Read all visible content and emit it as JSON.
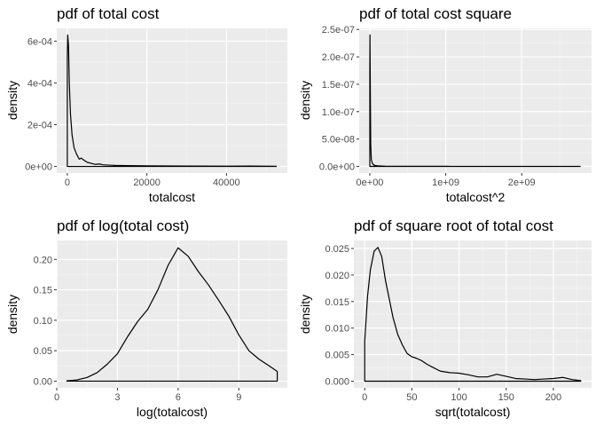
{
  "chart_data": [
    {
      "type": "area",
      "title": "pdf of total cost",
      "xlabel": "totalcost",
      "ylabel": "density",
      "xlim": [
        -2650,
        55300
      ],
      "ylim": [
        -3.15e-05,
        0.000661
      ],
      "grid": true,
      "x_ticks": [
        {
          "value": 0,
          "label": "0"
        },
        {
          "value": 20000,
          "label": "20000"
        },
        {
          "value": 40000,
          "label": "40000"
        }
      ],
      "y_ticks": [
        {
          "value": 0,
          "label": "0e+00"
        },
        {
          "value": 0.0002,
          "label": "2e-04"
        },
        {
          "value": 0.0004,
          "label": "4e-04"
        },
        {
          "value": 0.0006,
          "label": "6e-04"
        }
      ],
      "series": [
        {
          "x": [
            0,
            100,
            300,
            500,
            800,
            1200,
            1700,
            2300,
            3000,
            3500,
            4200,
            5000,
            6000,
            7000,
            8000,
            9000,
            10000,
            12000,
            15000,
            20000,
            30000,
            40000,
            46000,
            52500
          ],
          "y": [
            0.00052,
            0.00063,
            0.00058,
            0.0004,
            0.00025,
            0.00015,
            9e-05,
            6e-05,
            3.5e-05,
            4e-05,
            3e-05,
            2e-05,
            1.5e-05,
            1e-05,
            1.2e-05,
            8e-06,
            7e-06,
            5e-06,
            4e-06,
            3e-06,
            2e-06,
            1.5e-06,
            2e-06,
            1e-06
          ]
        }
      ]
    },
    {
      "type": "area",
      "title": "pdf of total cost square",
      "xlabel": "totalcost^2",
      "ylabel": "density",
      "xlim": [
        -140000000,
        2920000000
      ],
      "ylim": [
        -1.22e-08,
        2.52e-07
      ],
      "grid": true,
      "x_ticks": [
        {
          "value": 0,
          "label": "0e+00"
        },
        {
          "value": 1000000000,
          "label": "1e+09"
        },
        {
          "value": 2000000000,
          "label": "2e+09"
        }
      ],
      "y_ticks": [
        {
          "value": 0,
          "label": "0.0e+00"
        },
        {
          "value": 5e-08,
          "label": "5.0e-08"
        },
        {
          "value": 1e-07,
          "label": "1.0e-07"
        },
        {
          "value": 1.5e-07,
          "label": "1.5e-07"
        },
        {
          "value": 2e-07,
          "label": "2.0e-07"
        },
        {
          "value": 2.5e-07,
          "label": "2.5e-07"
        }
      ],
      "series": [
        {
          "x": [
            0,
            2000000,
            6000000,
            12000000,
            20000000,
            35000000,
            60000000,
            100000000,
            200000000,
            500000000,
            1000000000,
            2000000000,
            2770000000
          ],
          "y": [
            1.8e-07,
            2.4e-07,
            1.5e-07,
            4e-08,
            1.2e-08,
            5e-09,
            2e-09,
            1e-09,
            5e-10,
            2e-10,
            1e-10,
            5e-11,
            0
          ]
        }
      ]
    },
    {
      "type": "area",
      "title": "pdf of log(total cost)",
      "xlabel": "log(totalcost)",
      "ylabel": "density",
      "xlim": [
        0,
        11.4
      ],
      "ylim": [
        -0.011,
        0.231
      ],
      "grid": true,
      "x_ticks": [
        {
          "value": 0,
          "label": "0"
        },
        {
          "value": 3,
          "label": "3"
        },
        {
          "value": 6,
          "label": "6"
        },
        {
          "value": 9,
          "label": "9"
        }
      ],
      "y_ticks": [
        {
          "value": 0,
          "label": "0.00"
        },
        {
          "value": 0.05,
          "label": "0.05"
        },
        {
          "value": 0.1,
          "label": "0.10"
        },
        {
          "value": 0.15,
          "label": "0.15"
        },
        {
          "value": 0.2,
          "label": "0.20"
        }
      ],
      "series": [
        {
          "x": [
            0.5,
            1,
            1.5,
            2,
            2.5,
            3,
            3.5,
            4,
            4.5,
            5,
            5.5,
            6,
            6.5,
            7,
            7.5,
            8,
            8.5,
            9,
            9.5,
            10,
            10.5,
            10.9
          ],
          "y": [
            0.0005,
            0.002,
            0.006,
            0.014,
            0.028,
            0.045,
            0.073,
            0.098,
            0.118,
            0.15,
            0.19,
            0.219,
            0.205,
            0.18,
            0.158,
            0.133,
            0.107,
            0.076,
            0.05,
            0.036,
            0.025,
            0.016
          ]
        }
      ]
    },
    {
      "type": "area",
      "title": "pdf of square root of total cost",
      "xlabel": "sqrt(totalcost)",
      "ylabel": "density",
      "xlim": [
        -11.5,
        240.5
      ],
      "ylim": [
        -0.00126,
        0.0265
      ],
      "grid": true,
      "x_ticks": [
        {
          "value": 0,
          "label": "0"
        },
        {
          "value": 50,
          "label": "50"
        },
        {
          "value": 100,
          "label": "100"
        },
        {
          "value": 150,
          "label": "150"
        },
        {
          "value": 200,
          "label": "200"
        }
      ],
      "y_ticks": [
        {
          "value": 0,
          "label": "0.000"
        },
        {
          "value": 0.005,
          "label": "0.005"
        },
        {
          "value": 0.01,
          "label": "0.010"
        },
        {
          "value": 0.015,
          "label": "0.015"
        },
        {
          "value": 0.02,
          "label": "0.020"
        },
        {
          "value": 0.025,
          "label": "0.025"
        }
      ],
      "series": [
        {
          "x": [
            0,
            3,
            6,
            10,
            14,
            18,
            22,
            26,
            30,
            35,
            40,
            45,
            50,
            55,
            60,
            65,
            70,
            80,
            90,
            100,
            110,
            120,
            130,
            140,
            150,
            160,
            170,
            180,
            190,
            200,
            210,
            220,
            229
          ],
          "y": [
            0.0075,
            0.016,
            0.021,
            0.0245,
            0.0252,
            0.0235,
            0.019,
            0.0155,
            0.012,
            0.0088,
            0.0068,
            0.0052,
            0.0046,
            0.0043,
            0.0039,
            0.0033,
            0.0028,
            0.0019,
            0.0016,
            0.0015,
            0.0012,
            0.0008,
            0.0008,
            0.0013,
            0.0009,
            0.0005,
            0.0004,
            0.0003,
            0.0004,
            0.0005,
            0.0007,
            0.0003,
            0.0001
          ]
        }
      ]
    }
  ]
}
